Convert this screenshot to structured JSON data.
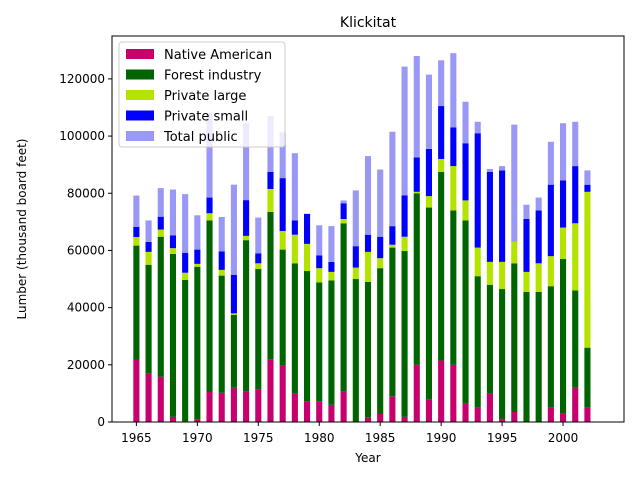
{
  "chart_data": {
    "type": "bar",
    "stacked": true,
    "title": "Klickitat",
    "xlabel": "Year",
    "ylabel": "Lumber (thousand board feet)",
    "xlim": [
      1963,
      2005
    ],
    "ylim": [
      0,
      135000
    ],
    "xticks": [
      1965,
      1970,
      1975,
      1980,
      1985,
      1990,
      1995,
      2000
    ],
    "yticks": [
      0,
      20000,
      40000,
      60000,
      80000,
      100000,
      120000
    ],
    "grid": false,
    "legend": "top-left",
    "x": [
      1965,
      1966,
      1967,
      1968,
      1969,
      1970,
      1971,
      1972,
      1973,
      1974,
      1975,
      1976,
      1977,
      1978,
      1979,
      1980,
      1981,
      1982,
      1983,
      1984,
      1985,
      1986,
      1987,
      1988,
      1989,
      1990,
      1991,
      1992,
      1993,
      1994,
      1995,
      1996,
      1997,
      1998,
      1999,
      2000,
      2001,
      2002
    ],
    "series": [
      {
        "name": "Native American",
        "color": "#c7006e",
        "values": [
          21700,
          17000,
          15800,
          1800,
          200,
          800,
          10500,
          10200,
          12000,
          10800,
          11500,
          22000,
          19800,
          10000,
          7300,
          7300,
          6000,
          10800,
          0,
          1500,
          2800,
          9000,
          1800,
          20000,
          8000,
          21500,
          20000,
          6500,
          5000,
          10000,
          1000,
          3500,
          0,
          0,
          5000,
          3000,
          12000,
          5000
        ]
      },
      {
        "name": "Forest industry",
        "color": "#006400",
        "values": [
          40000,
          38000,
          49000,
          57000,
          49500,
          53500,
          60000,
          41000,
          25500,
          52800,
          42000,
          51500,
          40500,
          45500,
          45500,
          41500,
          43500,
          58700,
          50000,
          47500,
          51000,
          52000,
          58000,
          60000,
          67000,
          66000,
          54000,
          64000,
          46000,
          38000,
          45500,
          52000,
          45500,
          45500,
          42500,
          54000,
          34000,
          21000
        ]
      },
      {
        "name": "Private large",
        "color": "#b5e300",
        "values": [
          3000,
          4500,
          2500,
          2000,
          2500,
          1000,
          2500,
          2000,
          500,
          1500,
          2000,
          8000,
          6500,
          10000,
          9500,
          5000,
          3000,
          1500,
          4000,
          10500,
          3500,
          1000,
          5000,
          500,
          4000,
          4500,
          15500,
          7000,
          10000,
          8000,
          9500,
          7500,
          7000,
          10000,
          10500,
          11000,
          23500,
          54500
        ]
      },
      {
        "name": "Private small",
        "color": "#0000ff",
        "values": [
          3500,
          3500,
          4500,
          4500,
          7000,
          5000,
          5500,
          6500,
          13500,
          12500,
          3500,
          6000,
          18500,
          5000,
          10500,
          4500,
          3500,
          5500,
          7500,
          6000,
          7500,
          6500,
          14500,
          12000,
          16500,
          18500,
          13500,
          20000,
          40000,
          31500,
          32000,
          0,
          18500,
          18500,
          25000,
          16500,
          20000,
          2500
        ]
      },
      {
        "name": "Total public",
        "color": "#9999f5",
        "values": [
          11000,
          7500,
          10000,
          16000,
          20500,
          12000,
          29500,
          12000,
          31500,
          27000,
          12500,
          19500,
          16000,
          23500,
          0,
          10500,
          12500,
          1000,
          19500,
          27500,
          23500,
          33000,
          45000,
          35500,
          26000,
          16000,
          26000,
          14500,
          4000,
          1000,
          1500,
          41000,
          5000,
          4500,
          15000,
          20000,
          15500,
          5000
        ]
      }
    ]
  }
}
